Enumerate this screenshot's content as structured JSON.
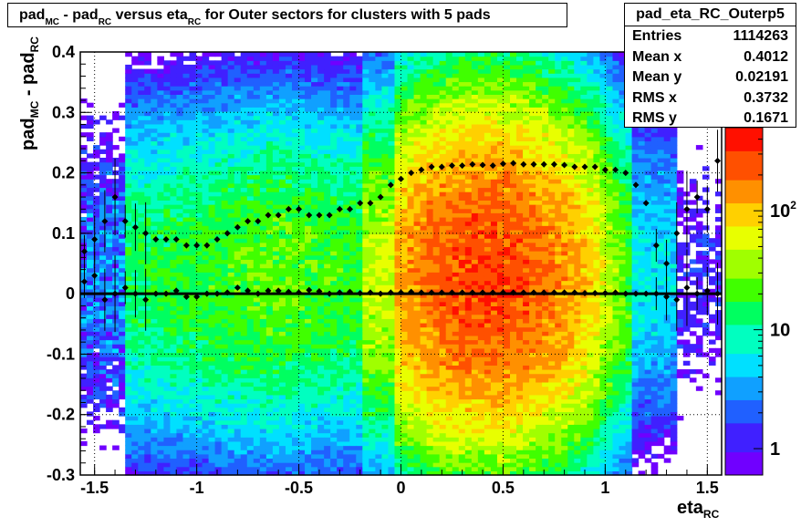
{
  "chart_data": {
    "type": "heatmap",
    "title_parts": [
      "pad",
      "MC",
      " - pad",
      "RC",
      " versus eta",
      "RC",
      " for Outer sectors for clusters with 5 pads"
    ],
    "xlabel_parts": [
      "eta",
      "RC"
    ],
    "ylabel_parts": [
      "pad",
      "MC",
      " - pad",
      "RC"
    ],
    "xlim": [
      -1.57,
      1.57
    ],
    "ylim": [
      -0.3,
      0.4
    ],
    "x_ticks": [
      -1.5,
      -1,
      -0.5,
      0,
      0.5,
      1,
      1.5
    ],
    "x_tick_labels": [
      "-1.5",
      "-1",
      "-0.5",
      "0",
      "0.5",
      "1",
      "1.5"
    ],
    "y_ticks": [
      -0.3,
      -0.2,
      -0.1,
      0,
      0.1,
      0.2,
      0.3,
      0.4
    ],
    "y_tick_labels": [
      "-0.3",
      "-0.2",
      "-0.1",
      "0",
      "0.1",
      "0.2",
      "0.3",
      "0.4"
    ],
    "grid": true,
    "colorbar": {
      "scale": "log",
      "range": [
        0.6,
        500
      ],
      "tick_labels": [
        {
          "value": 1,
          "text": "1"
        },
        {
          "value": 10,
          "text": "10"
        },
        {
          "value": 100,
          "text": "10",
          "sup": "2"
        }
      ]
    },
    "stats_box": {
      "name": "pad_eta_RC_Outerp5",
      "rows": [
        {
          "label": "Entries",
          "value": "1114263"
        },
        {
          "label": "Mean x",
          "value": "0.4012"
        },
        {
          "label": "Mean y",
          "value": "0.02191"
        },
        {
          "label": "RMS x",
          "value": "0.3732"
        },
        {
          "label": "RMS y",
          "value": "0.1671"
        }
      ]
    },
    "series": [
      {
        "marker": "rms-profile",
        "x": [
          -1.55,
          -1.5,
          -1.45,
          -1.4,
          -1.35,
          -1.3,
          -1.25,
          -1.2,
          -1.15,
          -1.1,
          -1.05,
          -1.0,
          -0.95,
          -0.9,
          -0.85,
          -0.8,
          -0.75,
          -0.7,
          -0.65,
          -0.6,
          -0.55,
          -0.5,
          -0.45,
          -0.4,
          -0.35,
          -0.3,
          -0.25,
          -0.2,
          -0.15,
          -0.1,
          -0.05,
          0.0,
          0.05,
          0.1,
          0.15,
          0.2,
          0.25,
          0.3,
          0.35,
          0.4,
          0.45,
          0.5,
          0.55,
          0.6,
          0.65,
          0.7,
          0.75,
          0.8,
          0.85,
          0.9,
          0.95,
          1.0,
          1.05,
          1.1,
          1.15,
          1.2,
          1.25,
          1.3,
          1.35,
          1.4,
          1.45,
          1.5,
          1.55
        ],
        "y": [
          0.07,
          0.09,
          0.12,
          0.16,
          0.12,
          0.11,
          0.1,
          0.09,
          0.09,
          0.09,
          0.08,
          0.08,
          0.08,
          0.09,
          0.1,
          0.11,
          0.12,
          0.12,
          0.13,
          0.13,
          0.14,
          0.14,
          0.13,
          0.13,
          0.13,
          0.14,
          0.14,
          0.15,
          0.15,
          0.16,
          0.18,
          0.19,
          0.2,
          0.205,
          0.21,
          0.21,
          0.212,
          0.212,
          0.214,
          0.213,
          0.212,
          0.215,
          0.216,
          0.214,
          0.214,
          0.214,
          0.214,
          0.213,
          0.21,
          0.21,
          0.21,
          0.205,
          0.205,
          0.2,
          0.18,
          0.15,
          0.08,
          0.05,
          0.1,
          0.14,
          0.16,
          0.14,
          0.22
        ]
      },
      {
        "marker": "mean-profile",
        "x": [
          -1.55,
          -1.5,
          -1.45,
          -1.4,
          -1.35,
          -1.3,
          -1.25,
          -1.2,
          -1.15,
          -1.1,
          -1.05,
          -1.0,
          -0.95,
          -0.9,
          -0.85,
          -0.8,
          -0.75,
          -0.7,
          -0.65,
          -0.6,
          -0.55,
          -0.5,
          -0.45,
          -0.4,
          -0.35,
          -0.3,
          -0.25,
          -0.2,
          -0.15,
          -0.1,
          -0.05,
          0.0,
          0.05,
          0.1,
          0.15,
          0.2,
          0.25,
          0.3,
          0.35,
          0.4,
          0.45,
          0.5,
          0.55,
          0.6,
          0.65,
          0.7,
          0.75,
          0.8,
          0.85,
          0.9,
          0.95,
          1.0,
          1.05,
          1.1,
          1.15,
          1.2,
          1.25,
          1.3,
          1.35,
          1.4,
          1.45,
          1.5,
          1.55
        ],
        "y": [
          0.02,
          0.03,
          -0.01,
          0.0,
          0.01,
          0.0,
          -0.01,
          0.0,
          0.0,
          0.005,
          -0.005,
          -0.005,
          0.0,
          0.0,
          0.002,
          0.01,
          0.005,
          0.0,
          0.005,
          0.005,
          0.003,
          0.002,
          0.006,
          0.004,
          0.0,
          0.002,
          0.003,
          0.001,
          0.002,
          0.0,
          0.002,
          0.002,
          0.003,
          0.002,
          0.002,
          0.002,
          0.002,
          0.002,
          0.002,
          0.002,
          0.002,
          0.002,
          0.002,
          0.002,
          0.002,
          0.002,
          0.002,
          0.002,
          0.002,
          0.001,
          0.001,
          0.001,
          0.002,
          0.0,
          0.0,
          0.0,
          0.0,
          -0.005,
          -0.01,
          0.01,
          0.0,
          0.005,
          0.0
        ]
      }
    ],
    "fit_line": {
      "y": 0.0
    }
  }
}
